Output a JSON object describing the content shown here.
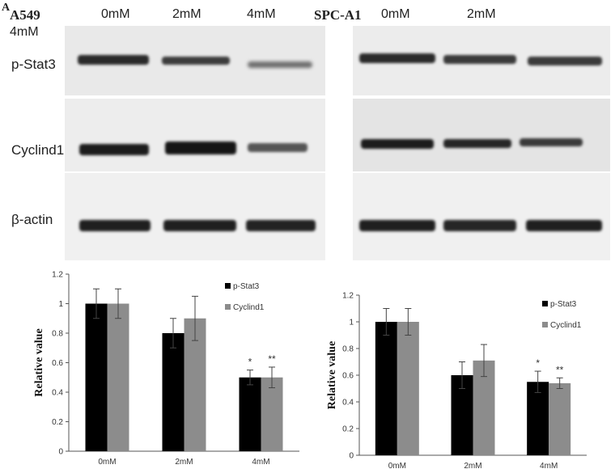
{
  "figure": {
    "panel_letter": "A",
    "cell_lines": [
      "A549",
      "SPC-A1"
    ],
    "header_concentrations": {
      "a549": [
        "0mM",
        "2mM",
        "4mM"
      ],
      "spca1": [
        "0mM",
        "2mM"
      ],
      "wrapped": "4mM"
    },
    "blot_labels": [
      "p-Stat3",
      "Cyclind1",
      "β-actin"
    ]
  },
  "chart_data": [
    {
      "type": "bar",
      "title": "",
      "xlabel": "",
      "ylabel": "Relative value",
      "ylim": [
        0,
        1.2
      ],
      "yticks": [
        "0",
        "0.2",
        "0.4",
        "0.6",
        "0.8",
        "1",
        "1.2"
      ],
      "categories": [
        "0mM",
        "2mM",
        "4mM"
      ],
      "series": [
        {
          "name": "p-Stat3",
          "color": "#000000",
          "values": [
            1.0,
            0.8,
            0.5
          ],
          "errors": [
            0.1,
            0.1,
            0.05
          ]
        },
        {
          "name": "Cyclind1",
          "color": "#8c8c8c",
          "values": [
            1.0,
            0.9,
            0.5
          ],
          "errors": [
            0.1,
            0.15,
            0.07
          ]
        }
      ],
      "annotations": [
        {
          "category": 2,
          "series": 0,
          "text": "*"
        },
        {
          "category": 2,
          "series": 1,
          "text": "**"
        }
      ],
      "legend": "top-right",
      "grid": false
    },
    {
      "type": "bar",
      "title": "",
      "xlabel": "",
      "ylabel": "Relative value",
      "ylim": [
        0,
        1.2
      ],
      "yticks": [
        "0",
        "0.2",
        "0.4",
        "0.6",
        "0.8",
        "1",
        "1.2"
      ],
      "categories": [
        "0mM",
        "2mM",
        "4mM"
      ],
      "series": [
        {
          "name": "p-Stat3",
          "color": "#000000",
          "values": [
            1.0,
            0.6,
            0.55
          ],
          "errors": [
            0.1,
            0.1,
            0.08
          ]
        },
        {
          "name": "Cyclind1",
          "color": "#8c8c8c",
          "values": [
            1.0,
            0.71,
            0.54
          ],
          "errors": [
            0.1,
            0.12,
            0.04
          ]
        }
      ],
      "annotations": [
        {
          "category": 2,
          "series": 0,
          "text": "*"
        },
        {
          "category": 2,
          "series": 1,
          "text": "**"
        }
      ],
      "legend": "top-right",
      "grid": false
    }
  ]
}
